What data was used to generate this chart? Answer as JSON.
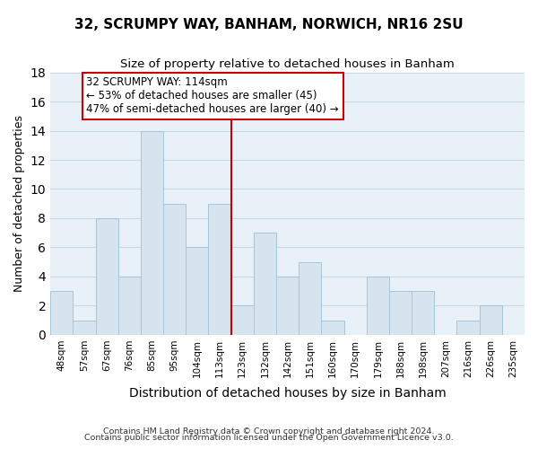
{
  "title": "32, SCRUMPY WAY, BANHAM, NORWICH, NR16 2SU",
  "subtitle": "Size of property relative to detached houses in Banham",
  "xlabel": "Distribution of detached houses by size in Banham",
  "ylabel": "Number of detached properties",
  "bar_labels": [
    "48sqm",
    "57sqm",
    "67sqm",
    "76sqm",
    "85sqm",
    "95sqm",
    "104sqm",
    "113sqm",
    "123sqm",
    "132sqm",
    "142sqm",
    "151sqm",
    "160sqm",
    "170sqm",
    "179sqm",
    "188sqm",
    "198sqm",
    "207sqm",
    "216sqm",
    "226sqm",
    "235sqm"
  ],
  "bar_values": [
    3,
    1,
    8,
    4,
    14,
    9,
    6,
    9,
    2,
    7,
    4,
    5,
    1,
    0,
    4,
    3,
    3,
    0,
    1,
    2,
    0
  ],
  "bar_color": "#d6e4f0",
  "bar_edge_color": "#a8c4d8",
  "subject_line_index": 7,
  "subject_line_color": "#cc0000",
  "annotation_text": "32 SCRUMPY WAY: 114sqm\n← 53% of detached houses are smaller (45)\n47% of semi-detached houses are larger (40) →",
  "annotation_box_color": "#ffffff",
  "annotation_box_edge": "#cc0000",
  "ylim": [
    0,
    18
  ],
  "yticks": [
    0,
    2,
    4,
    6,
    8,
    10,
    12,
    14,
    16,
    18
  ],
  "footer1": "Contains HM Land Registry data © Crown copyright and database right 2024.",
  "footer2": "Contains public sector information licensed under the Open Government Licence v3.0.",
  "grid_color": "#c8d8e8",
  "background_color": "#e8f0f8",
  "title_fontsize": 11,
  "subtitle_fontsize": 9.5,
  "ylabel_fontsize": 9,
  "xlabel_fontsize": 10
}
